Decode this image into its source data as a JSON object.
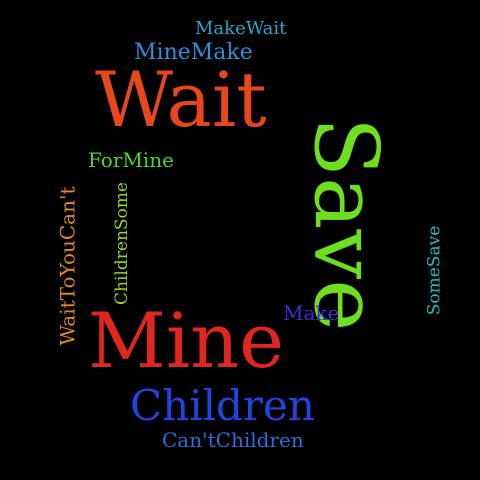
{
  "cloud": {
    "background": "#000000",
    "words": [
      {
        "text": "MakeWait",
        "color": "#29a7c9"
      },
      {
        "text": "MineMake",
        "color": "#2b8fd9"
      },
      {
        "text": "Wait",
        "color": "#e8461b"
      },
      {
        "text": "Save",
        "color": "#6fde1e"
      },
      {
        "text": "ForMine",
        "color": "#4fd42a"
      },
      {
        "text": "WaitToYouCan't",
        "color": "#e28a1e"
      },
      {
        "text": "ChildrenSome",
        "color": "#9ed81f"
      },
      {
        "text": "SomeSave",
        "color": "#21c2c2"
      },
      {
        "text": "Make",
        "color": "#3d2fd6"
      },
      {
        "text": "Mine",
        "color": "#e0261f"
      },
      {
        "text": "Children",
        "color": "#2044e0"
      },
      {
        "text": "Can'tChildren",
        "color": "#2a6fe0"
      }
    ]
  }
}
